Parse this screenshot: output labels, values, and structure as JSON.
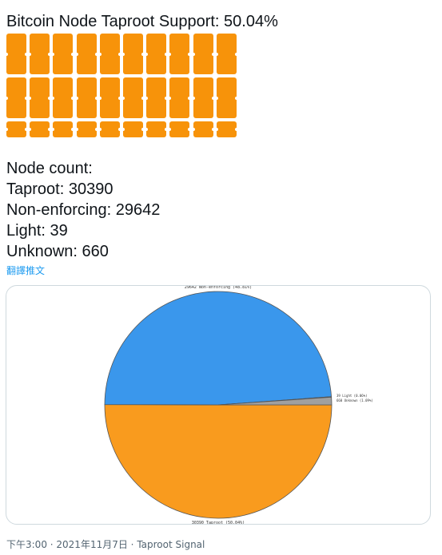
{
  "tweet": {
    "headline": "Bitcoin Node Taproot Support: 50.04%",
    "blocks": {
      "filled_ratio": 0.5004,
      "rows_visible": 2,
      "columns": 10
    },
    "node_count_label": "Node count:",
    "taproot_line": "Taproot: 30390",
    "non_enforcing_line": "Non-enforcing: 29642",
    "light_line": "Light: 39",
    "unknown_line": "Unknown: 660",
    "translate_label": "翻譯推文"
  },
  "colors": {
    "bitcoin_orange": "#f7930a",
    "pie_taproot": "#f99b1e",
    "pie_non_enforcing": "#3a97ec",
    "pie_light": "#888888",
    "pie_unknown": "#a0a0a0",
    "link_blue": "#1d9bf0",
    "meta_gray": "#536471"
  },
  "chart_data": {
    "type": "pie",
    "slices": [
      {
        "name": "Taproot",
        "value": 30390,
        "label": "30390 Taproot (50.04%)",
        "color": "#f99b1e"
      },
      {
        "name": "Non-enforcing",
        "value": 29642,
        "label": "29642 Non-enforcing (48.81%)",
        "color": "#3a97ec"
      },
      {
        "name": "Light",
        "value": 39,
        "label": "39 Light (0.06%)",
        "color": "#888888"
      },
      {
        "name": "Unknown",
        "value": 660,
        "label": "660 Unknown (1.09%)",
        "color": "#a0a0a0"
      }
    ]
  },
  "meta": {
    "time": "下午3:00",
    "separator": " · ",
    "date": "2021年11月7日",
    "source": "Taproot Signal"
  }
}
